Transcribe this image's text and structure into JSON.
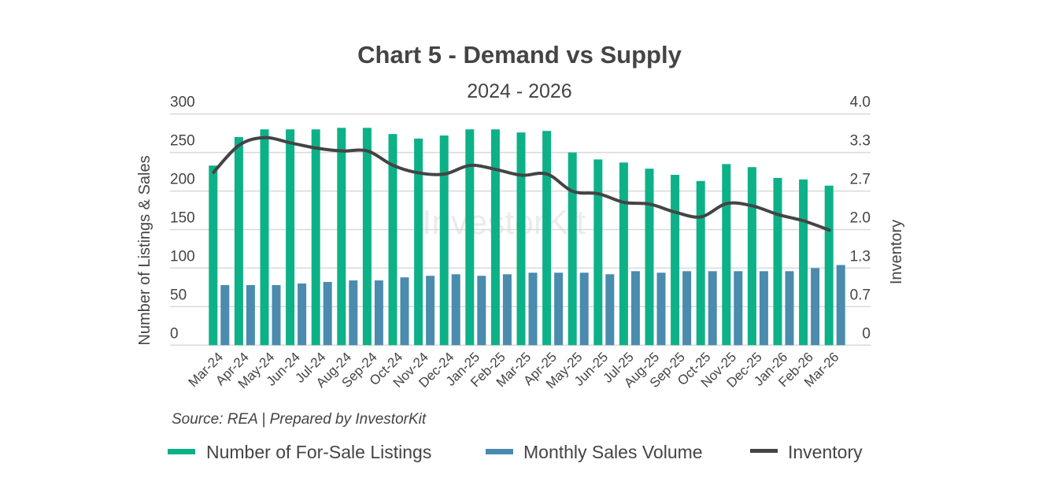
{
  "chart_data": {
    "type": "bar",
    "title": "Chart 5 - Demand vs Supply",
    "subtitle": "2024 - 2026",
    "ylabel": "Number of Listings & Sales",
    "y2label": "Inventory",
    "source": "Source: REA | Prepared by InvestorKit",
    "watermark": "InvestorKit",
    "ylim": [
      0,
      300
    ],
    "y2lim": [
      0,
      4.0
    ],
    "yticks": [
      "0",
      "50",
      "100",
      "150",
      "200",
      "250",
      "300"
    ],
    "y2ticks": [
      "0",
      "0.7",
      "1.3",
      "2.0",
      "2.7",
      "3.3",
      "4.0"
    ],
    "grid": true,
    "legend_position": "bottom",
    "categories": [
      "Mar-24",
      "Apr-24",
      "May-24",
      "Jun-24",
      "Jul-24",
      "Aug-24",
      "Sep-24",
      "Oct-24",
      "Nov-24",
      "Dec-24",
      "Jan-25",
      "Feb-25",
      "Mar-25",
      "Apr-25",
      "May-25",
      "Jun-25",
      "Jul-25",
      "Aug-25",
      "Sep-25",
      "Oct-25",
      "Nov-25",
      "Dec-25",
      "Jan-26",
      "Feb-26",
      "Mar-26"
    ],
    "series": [
      {
        "name": "Number of For-Sale Listings",
        "type": "bar",
        "axis": "left",
        "color": "#0db187",
        "values": [
          233,
          270,
          280,
          280,
          280,
          282,
          282,
          274,
          268,
          272,
          280,
          280,
          276,
          278,
          250,
          241,
          237,
          229,
          221,
          213,
          235,
          231,
          217,
          215,
          207
        ]
      },
      {
        "name": "Monthly Sales Volume",
        "type": "bar",
        "axis": "left",
        "color": "#4a8bae",
        "values": [
          78,
          78,
          78,
          80,
          82,
          84,
          84,
          88,
          90,
          92,
          90,
          92,
          94,
          94,
          94,
          92,
          96,
          94,
          96,
          96,
          96,
          96,
          96,
          100,
          104
        ]
      },
      {
        "name": "Inventory",
        "type": "line",
        "axis": "right",
        "color": "#444444",
        "values": [
          2.99,
          3.46,
          3.59,
          3.5,
          3.41,
          3.36,
          3.36,
          3.11,
          2.98,
          2.96,
          3.11,
          3.04,
          2.94,
          2.96,
          2.66,
          2.62,
          2.47,
          2.44,
          2.3,
          2.22,
          2.45,
          2.41,
          2.26,
          2.15,
          1.99
        ]
      }
    ]
  }
}
